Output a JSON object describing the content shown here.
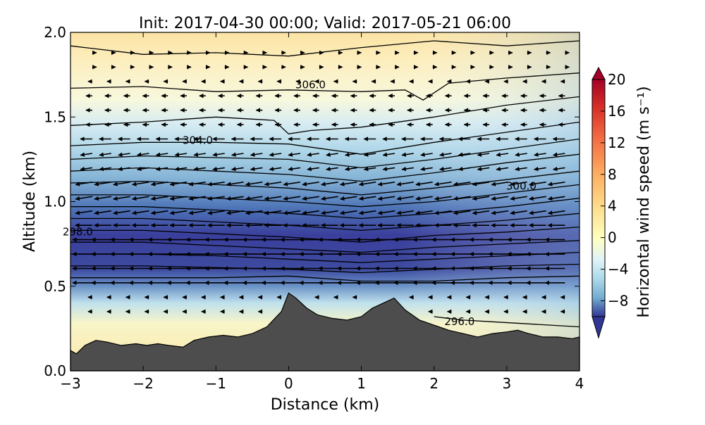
{
  "chart_data": {
    "type": "contour",
    "title": "Init: 2017-04-30 00:00; Valid: 2017-05-21 06:00",
    "xlabel": "Distance (km)",
    "ylabel": "Altitude (km)",
    "xlim": [
      -3,
      4
    ],
    "ylim": [
      0,
      2
    ],
    "xticks": [
      -3,
      -2,
      -1,
      0,
      1,
      2,
      3,
      4
    ],
    "xtick_labels": [
      "−3",
      "−2",
      "−1",
      "0",
      "1",
      "2",
      "3",
      "4"
    ],
    "yticks": [
      0.0,
      0.5,
      1.0,
      1.5,
      2.0
    ],
    "ytick_labels": [
      "0.0",
      "0.5",
      "1.0",
      "1.5",
      "2.0"
    ],
    "colorbar": {
      "label": "Horizontal wind speed (m s⁻¹)",
      "range": [
        -10,
        20
      ],
      "ticks": [
        20,
        16,
        12,
        8,
        4,
        0,
        -4,
        -8
      ],
      "tick_labels": [
        "20",
        "16",
        "12",
        "8",
        "4",
        "0",
        "−4",
        "−8"
      ],
      "colormap": "RdYlBu_r",
      "extend": "both"
    },
    "contour_labels": [
      {
        "text": "306.0",
        "x": 0.3,
        "y": 1.67
      },
      {
        "text": "304.0",
        "x": -1.25,
        "y": 1.34
      },
      {
        "text": "300.0",
        "x": 3.2,
        "y": 1.07
      },
      {
        "text": "298.0",
        "x": -2.9,
        "y": 0.8
      },
      {
        "text": "296.0",
        "x": 2.35,
        "y": 0.27
      }
    ],
    "terrain": {
      "x": [
        -3.0,
        -2.92,
        -2.8,
        -2.65,
        -2.5,
        -2.3,
        -2.1,
        -1.95,
        -1.8,
        -1.65,
        -1.45,
        -1.3,
        -1.1,
        -0.9,
        -0.7,
        -0.5,
        -0.3,
        -0.1,
        0.0,
        0.1,
        0.25,
        0.4,
        0.6,
        0.8,
        1.0,
        1.15,
        1.3,
        1.45,
        1.6,
        1.8,
        2.0,
        2.2,
        2.4,
        2.6,
        2.8,
        3.0,
        3.15,
        3.3,
        3.5,
        3.7,
        3.9,
        4.0
      ],
      "altitude": [
        0.12,
        0.1,
        0.15,
        0.18,
        0.17,
        0.15,
        0.16,
        0.15,
        0.16,
        0.15,
        0.14,
        0.18,
        0.2,
        0.21,
        0.2,
        0.22,
        0.26,
        0.35,
        0.46,
        0.43,
        0.37,
        0.33,
        0.31,
        0.3,
        0.32,
        0.37,
        0.4,
        0.43,
        0.36,
        0.3,
        0.27,
        0.24,
        0.22,
        0.2,
        0.22,
        0.23,
        0.24,
        0.22,
        0.2,
        0.2,
        0.19,
        0.2
      ]
    },
    "isentropes": [
      [
        [
          -3.0,
          1.92
        ],
        [
          -2.0,
          1.87
        ],
        [
          -1.0,
          1.88
        ],
        [
          0.0,
          1.86
        ],
        [
          1.0,
          1.91
        ],
        [
          2.0,
          1.95
        ],
        [
          3.0,
          1.92
        ],
        [
          4.0,
          1.95
        ]
      ],
      [
        [
          -3.0,
          1.67
        ],
        [
          -2.0,
          1.68
        ],
        [
          -1.0,
          1.65
        ],
        [
          0.0,
          1.66
        ],
        [
          1.0,
          1.65
        ],
        [
          1.6,
          1.66
        ],
        [
          1.85,
          1.6
        ],
        [
          2.2,
          1.7
        ],
        [
          3.0,
          1.73
        ],
        [
          4.0,
          1.76
        ]
      ],
      [
        [
          -3.0,
          1.45
        ],
        [
          -2.0,
          1.47
        ],
        [
          -1.0,
          1.5
        ],
        [
          -0.2,
          1.48
        ],
        [
          0.0,
          1.4
        ],
        [
          0.3,
          1.42
        ],
        [
          1.0,
          1.44
        ],
        [
          2.0,
          1.5
        ],
        [
          3.0,
          1.57
        ],
        [
          4.0,
          1.62
        ]
      ],
      [
        [
          -3.0,
          1.33
        ],
        [
          -2.0,
          1.35
        ],
        [
          -1.0,
          1.35
        ],
        [
          0.0,
          1.34
        ],
        [
          1.0,
          1.28
        ],
        [
          2.0,
          1.35
        ],
        [
          3.0,
          1.41
        ],
        [
          4.0,
          1.47
        ]
      ],
      [
        [
          -3.0,
          1.25
        ],
        [
          -2.0,
          1.27
        ],
        [
          -1.0,
          1.26
        ],
        [
          0.0,
          1.25
        ],
        [
          1.0,
          1.2
        ],
        [
          2.0,
          1.25
        ],
        [
          3.0,
          1.31
        ],
        [
          4.0,
          1.37
        ]
      ],
      [
        [
          -3.0,
          1.18
        ],
        [
          -2.0,
          1.2
        ],
        [
          -1.0,
          1.18
        ],
        [
          0.0,
          1.16
        ],
        [
          1.0,
          1.12
        ],
        [
          2.0,
          1.17
        ],
        [
          3.0,
          1.23
        ],
        [
          4.0,
          1.28
        ]
      ],
      [
        [
          -3.0,
          1.11
        ],
        [
          -2.0,
          1.12
        ],
        [
          -1.0,
          1.1
        ],
        [
          0.0,
          1.08
        ],
        [
          1.0,
          1.04
        ],
        [
          2.0,
          1.08
        ],
        [
          3.0,
          1.13
        ],
        [
          4.0,
          1.18
        ]
      ],
      [
        [
          -3.0,
          1.04
        ],
        [
          -2.0,
          1.04
        ],
        [
          -1.0,
          1.02
        ],
        [
          0.0,
          1.0
        ],
        [
          1.0,
          0.97
        ],
        [
          2.0,
          1.0
        ],
        [
          3.0,
          1.05
        ],
        [
          4.0,
          1.1
        ]
      ],
      [
        [
          -3.0,
          0.97
        ],
        [
          -2.0,
          0.97
        ],
        [
          -1.0,
          0.95
        ],
        [
          0.0,
          0.93
        ],
        [
          1.0,
          0.9
        ],
        [
          2.0,
          0.93
        ],
        [
          3.0,
          0.97
        ],
        [
          4.0,
          1.02
        ]
      ],
      [
        [
          -3.0,
          0.9
        ],
        [
          -2.0,
          0.9
        ],
        [
          -1.0,
          0.88
        ],
        [
          0.0,
          0.86
        ],
        [
          1.0,
          0.83
        ],
        [
          2.0,
          0.86
        ],
        [
          3.0,
          0.89
        ],
        [
          4.0,
          0.93
        ]
      ],
      [
        [
          -3.0,
          0.83
        ],
        [
          -2.0,
          0.83
        ],
        [
          -1.0,
          0.81
        ],
        [
          0.0,
          0.79
        ],
        [
          1.0,
          0.76
        ],
        [
          2.0,
          0.8
        ],
        [
          3.0,
          0.82
        ],
        [
          4.0,
          0.85
        ]
      ],
      [
        [
          -3.0,
          0.76
        ],
        [
          -2.0,
          0.76
        ],
        [
          -1.0,
          0.74
        ],
        [
          0.0,
          0.72
        ],
        [
          1.0,
          0.7
        ],
        [
          2.0,
          0.73
        ],
        [
          3.0,
          0.75
        ],
        [
          4.0,
          0.77
        ]
      ],
      [
        [
          -3.0,
          0.69
        ],
        [
          -2.0,
          0.69
        ],
        [
          -1.0,
          0.68
        ],
        [
          0.0,
          0.66
        ],
        [
          1.0,
          0.64
        ],
        [
          2.0,
          0.66
        ],
        [
          3.0,
          0.68
        ],
        [
          4.0,
          0.7
        ]
      ],
      [
        [
          -3.0,
          0.62
        ],
        [
          -2.0,
          0.62
        ],
        [
          -1.0,
          0.61
        ],
        [
          0.0,
          0.6
        ],
        [
          1.0,
          0.58
        ],
        [
          2.0,
          0.6
        ],
        [
          3.0,
          0.62
        ],
        [
          4.0,
          0.63
        ]
      ],
      [
        [
          -3.0,
          0.55
        ],
        [
          -2.0,
          0.55
        ],
        [
          -1.0,
          0.55
        ],
        [
          0.0,
          0.56
        ],
        [
          1.0,
          0.53
        ],
        [
          2.0,
          0.53
        ],
        [
          3.0,
          0.55
        ],
        [
          4.0,
          0.56
        ]
      ],
      [
        [
          2.0,
          0.32
        ],
        [
          2.4,
          0.3
        ],
        [
          2.8,
          0.29
        ],
        [
          3.2,
          0.28
        ],
        [
          3.6,
          0.27
        ],
        [
          4.0,
          0.26
        ]
      ]
    ]
  }
}
